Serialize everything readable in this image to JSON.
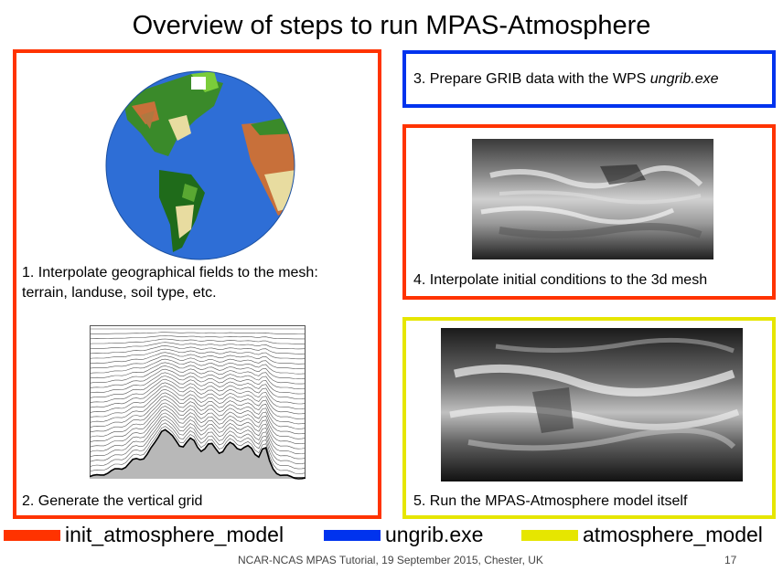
{
  "title": "Overview of steps to run MPAS-Atmosphere",
  "steps": {
    "step1": {
      "prefix": "1. Interpolate geographical fields to the mesh:",
      "line2": "terrain, landuse, soil type, etc."
    },
    "step2": {
      "text": "2. Generate the vertical grid"
    },
    "step3": {
      "prefix": "3. Prepare GRIB data with the WPS ",
      "emph": "ungrib.exe"
    },
    "step4": {
      "text": "4. Interpolate initial conditions to the 3d mesh"
    },
    "step5": {
      "text": "5. Run the MPAS-Atmosphere model itself"
    }
  },
  "legend": [
    {
      "label": "init_atmosphere_model",
      "color": "#ff3300"
    },
    {
      "label": "ungrib.exe",
      "color": "#0033ee"
    },
    {
      "label": "atmosphere_model",
      "color": "#e6e600"
    }
  ],
  "footer": {
    "text": "NCAR-NCAS MPAS Tutorial, 19 September 2015, Chester, UK",
    "page": "17"
  }
}
